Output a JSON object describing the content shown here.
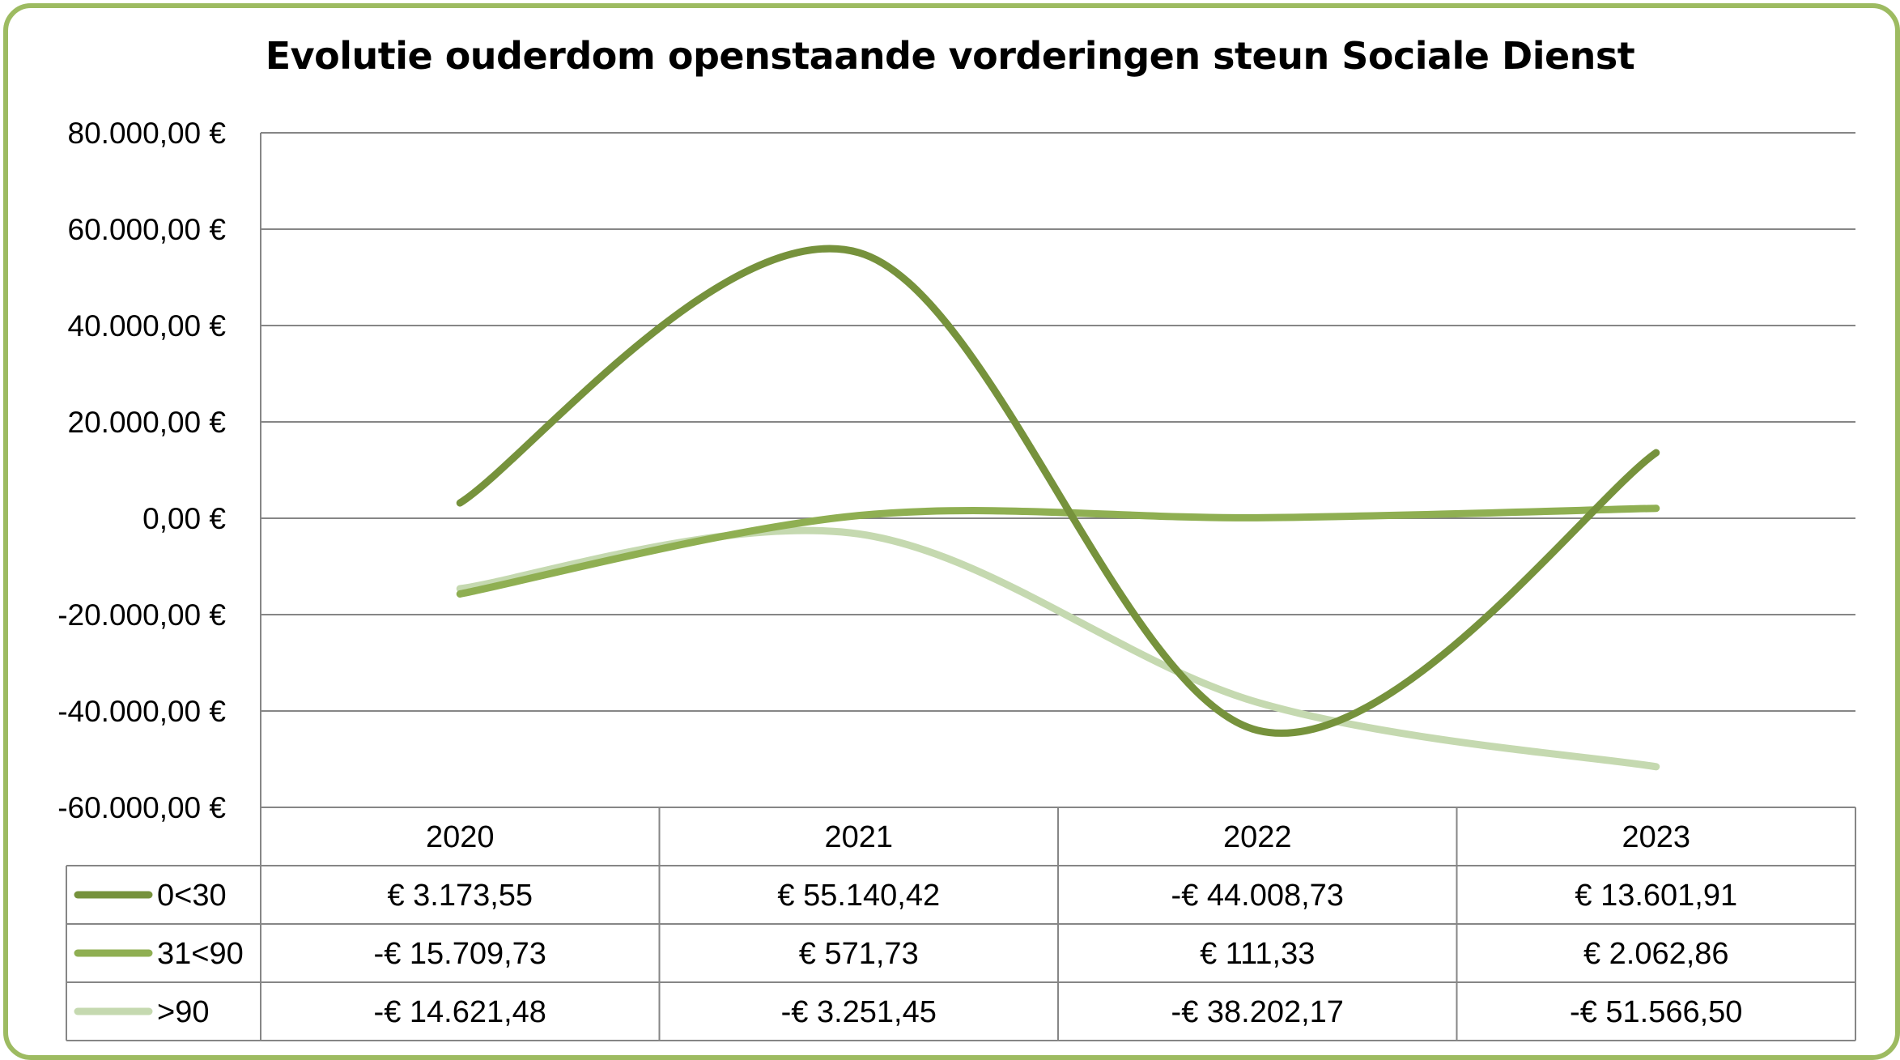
{
  "chart_data": {
    "type": "line",
    "title": "Evolutie ouderdom openstaande vorderingen steun Sociale Dienst",
    "categories": [
      "2020",
      "2021",
      "2022",
      "2023"
    ],
    "series": [
      {
        "name": "0<30",
        "values": [
          3173.55,
          55140.42,
          -44008.73,
          13601.91
        ],
        "labels": [
          "€ 3.173,55",
          "€ 55.140,42",
          "-€ 44.008,73",
          "€ 13.601,91"
        ],
        "color": "#76923c"
      },
      {
        "name": "31<90",
        "values": [
          -15709.73,
          571.73,
          111.33,
          2062.86
        ],
        "labels": [
          "-€ 15.709,73",
          "€ 571,73",
          "€ 111,33",
          "€ 2.062,86"
        ],
        "color": "#8faf52"
      },
      {
        "name": ">90",
        "values": [
          -14621.48,
          -3251.45,
          -38202.17,
          -51566.5
        ],
        "labels": [
          "-€ 14.621,48",
          "-€ 3.251,45",
          "-€ 38.202,17",
          "-€ 51.566,50"
        ],
        "color": "#c5d9b0"
      }
    ],
    "ylim": [
      -60000,
      80000
    ],
    "yticks": [
      80000,
      60000,
      40000,
      20000,
      0,
      -20000,
      -40000,
      -60000
    ],
    "ytick_labels": [
      "80.000,00 €",
      "60.000,00 €",
      "40.000,00 €",
      "20.000,00 €",
      "0,00 €",
      "-20.000,00 €",
      "-40.000,00 €",
      "-60.000,00 €"
    ],
    "grid": true,
    "legend": "data-table",
    "smooth": true
  },
  "colors": {
    "frame": "#9dbb61",
    "grid": "#868686"
  }
}
